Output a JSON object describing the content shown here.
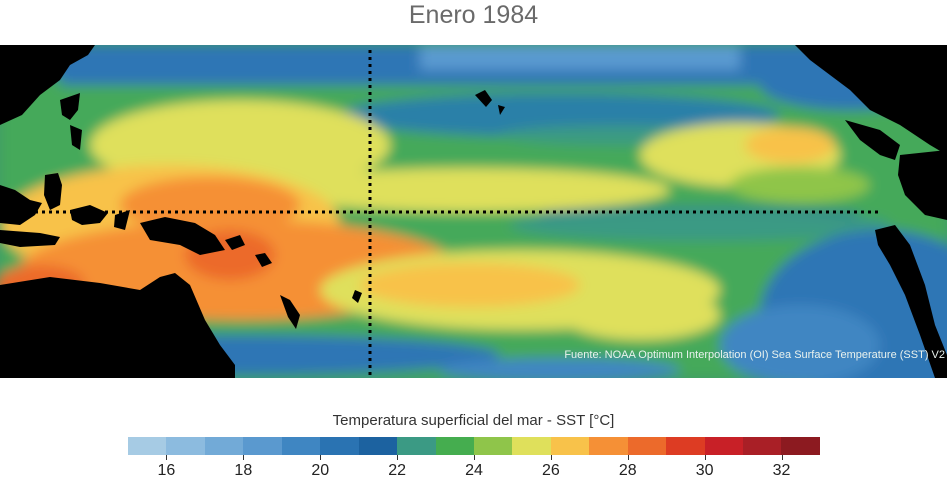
{
  "title": "Enero 1984",
  "source_note": "Fuente: NOAA Optimum Interpolation (OI) Sea Surface Temperature (SST) V2",
  "colorbar": {
    "label": "Temperatura superficial del mar - SST  [°C]",
    "min": 15,
    "max": 33,
    "step": 1,
    "tick_values": [
      16,
      18,
      20,
      22,
      24,
      26,
      28,
      30,
      32
    ],
    "tick_labels": [
      "16",
      "18",
      "20",
      "22",
      "24",
      "26",
      "28",
      "30",
      "32"
    ],
    "colors": [
      "#a6cbe4",
      "#8cbbdf",
      "#72aad7",
      "#5a99cf",
      "#3f86c2",
      "#2a73b2",
      "#1c62a0",
      "#3b9a84",
      "#45ad4f",
      "#8fc54a",
      "#dfe05b",
      "#f8c24a",
      "#f59036",
      "#ec6a2b",
      "#dd3c23",
      "#c82027",
      "#a91f26",
      "#8c1a20"
    ]
  },
  "map": {
    "reference_lines": [
      "equator",
      "dateline"
    ],
    "land_color": "#000000"
  }
}
